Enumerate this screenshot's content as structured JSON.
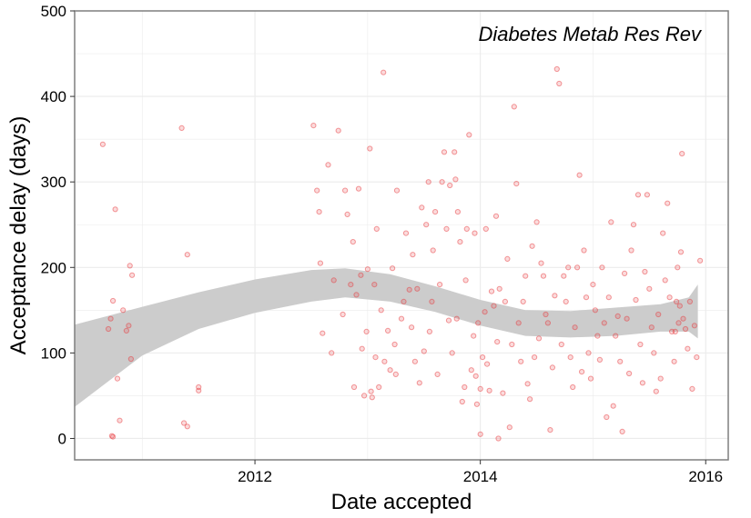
{
  "chart_data": {
    "type": "scatter",
    "title": "Diabetes Metab Res Rev",
    "xlabel": "Date accepted",
    "ylabel": "Acceptance delay (days)",
    "xlim": [
      2010.4,
      2016.2
    ],
    "ylim": [
      -25,
      500
    ],
    "xticks": [
      2012,
      2014,
      2016
    ],
    "yticks": [
      0,
      100,
      200,
      300,
      400,
      500
    ],
    "grid": true,
    "colors": {
      "points": "#e8383b",
      "band": "#cccccc",
      "grid": "#ebebeb",
      "border": "#7f7f7f"
    },
    "smooth_band": [
      {
        "x": 2010.4,
        "lower": 37,
        "upper": 133
      },
      {
        "x": 2011.0,
        "lower": 97,
        "upper": 154
      },
      {
        "x": 2011.5,
        "lower": 128,
        "upper": 171
      },
      {
        "x": 2012.0,
        "lower": 147,
        "upper": 186
      },
      {
        "x": 2012.5,
        "lower": 160,
        "upper": 197
      },
      {
        "x": 2012.8,
        "lower": 165,
        "upper": 199
      },
      {
        "x": 2013.2,
        "lower": 160,
        "upper": 192
      },
      {
        "x": 2013.6,
        "lower": 148,
        "upper": 178
      },
      {
        "x": 2014.0,
        "lower": 132,
        "upper": 162
      },
      {
        "x": 2014.4,
        "lower": 120,
        "upper": 150
      },
      {
        "x": 2014.8,
        "lower": 118,
        "upper": 149
      },
      {
        "x": 2015.2,
        "lower": 120,
        "upper": 153
      },
      {
        "x": 2015.6,
        "lower": 125,
        "upper": 157
      },
      {
        "x": 2015.85,
        "lower": 125,
        "upper": 165
      },
      {
        "x": 2015.93,
        "lower": 117,
        "upper": 180
      }
    ],
    "points": [
      [
        2010.65,
        344
      ],
      [
        2010.7,
        128
      ],
      [
        2010.72,
        140
      ],
      [
        2010.74,
        161
      ],
      [
        2010.76,
        268
      ],
      [
        2010.78,
        70
      ],
      [
        2010.73,
        3
      ],
      [
        2010.74,
        2
      ],
      [
        2010.8,
        21
      ],
      [
        2010.83,
        150
      ],
      [
        2010.86,
        126
      ],
      [
        2010.88,
        132
      ],
      [
        2010.9,
        93
      ],
      [
        2010.89,
        202
      ],
      [
        2010.91,
        191
      ],
      [
        2011.35,
        363
      ],
      [
        2011.37,
        18
      ],
      [
        2011.4,
        14
      ],
      [
        2011.4,
        215
      ],
      [
        2011.5,
        60
      ],
      [
        2011.5,
        56
      ],
      [
        2012.52,
        366
      ],
      [
        2012.55,
        290
      ],
      [
        2012.57,
        265
      ],
      [
        2012.58,
        205
      ],
      [
        2012.6,
        123
      ],
      [
        2012.65,
        320
      ],
      [
        2012.68,
        100
      ],
      [
        2012.7,
        185
      ],
      [
        2012.74,
        360
      ],
      [
        2012.78,
        145
      ],
      [
        2012.8,
        290
      ],
      [
        2012.82,
        262
      ],
      [
        2012.85,
        180
      ],
      [
        2012.87,
        230
      ],
      [
        2012.88,
        60
      ],
      [
        2012.9,
        168
      ],
      [
        2012.92,
        292
      ],
      [
        2012.94,
        191
      ],
      [
        2012.95,
        105
      ],
      [
        2012.97,
        50
      ],
      [
        2012.99,
        125
      ],
      [
        2013.0,
        198
      ],
      [
        2013.02,
        339
      ],
      [
        2013.03,
        55
      ],
      [
        2013.04,
        48
      ],
      [
        2013.06,
        180
      ],
      [
        2013.07,
        95
      ],
      [
        2013.08,
        245
      ],
      [
        2013.1,
        60
      ],
      [
        2013.12,
        150
      ],
      [
        2013.14,
        428
      ],
      [
        2013.15,
        90
      ],
      [
        2013.18,
        126
      ],
      [
        2013.2,
        80
      ],
      [
        2013.22,
        199
      ],
      [
        2013.24,
        110
      ],
      [
        2013.25,
        75
      ],
      [
        2013.26,
        290
      ],
      [
        2013.3,
        140
      ],
      [
        2013.32,
        160
      ],
      [
        2013.34,
        240
      ],
      [
        2013.37,
        174
      ],
      [
        2013.39,
        130
      ],
      [
        2013.4,
        215
      ],
      [
        2013.42,
        90
      ],
      [
        2013.44,
        175
      ],
      [
        2013.46,
        65
      ],
      [
        2013.48,
        270
      ],
      [
        2013.5,
        102
      ],
      [
        2013.52,
        250
      ],
      [
        2013.54,
        300
      ],
      [
        2013.55,
        125
      ],
      [
        2013.57,
        160
      ],
      [
        2013.58,
        220
      ],
      [
        2013.6,
        265
      ],
      [
        2013.62,
        75
      ],
      [
        2013.64,
        180
      ],
      [
        2013.66,
        300
      ],
      [
        2013.68,
        335
      ],
      [
        2013.7,
        245
      ],
      [
        2013.72,
        138
      ],
      [
        2013.73,
        296
      ],
      [
        2013.75,
        100
      ],
      [
        2013.77,
        335
      ],
      [
        2013.78,
        303
      ],
      [
        2013.79,
        140
      ],
      [
        2013.8,
        265
      ],
      [
        2013.82,
        230
      ],
      [
        2013.84,
        43
      ],
      [
        2013.86,
        60
      ],
      [
        2013.87,
        185
      ],
      [
        2013.88,
        245
      ],
      [
        2013.9,
        355
      ],
      [
        2013.92,
        80
      ],
      [
        2013.94,
        120
      ],
      [
        2013.95,
        240
      ],
      [
        2013.96,
        73
      ],
      [
        2013.97,
        40
      ],
      [
        2013.98,
        135
      ],
      [
        2014.0,
        5
      ],
      [
        2014.02,
        95
      ],
      [
        2014.04,
        148
      ],
      [
        2014.05,
        245
      ],
      [
        2014.06,
        87
      ],
      [
        2014.08,
        56
      ],
      [
        2014.1,
        172
      ],
      [
        2014.12,
        155
      ],
      [
        2014.14,
        260
      ],
      [
        2014.15,
        113
      ],
      [
        2014.16,
        0
      ],
      [
        2014.17,
        175
      ],
      [
        2014.2,
        53
      ],
      [
        2014.22,
        160
      ],
      [
        2014.24,
        210
      ],
      [
        2014.26,
        13
      ],
      [
        2014.28,
        110
      ],
      [
        2014.3,
        388
      ],
      [
        2014.32,
        298
      ],
      [
        2014.34,
        135
      ],
      [
        2014.36,
        90
      ],
      [
        2014.38,
        160
      ],
      [
        2014.4,
        190
      ],
      [
        2014.42,
        64
      ],
      [
        2014.44,
        46
      ],
      [
        2014.46,
        225
      ],
      [
        2014.48,
        95
      ],
      [
        2014.5,
        253
      ],
      [
        2014.52,
        117
      ],
      [
        2014.54,
        205
      ],
      [
        2014.56,
        190
      ],
      [
        2014.58,
        145
      ],
      [
        2014.6,
        135
      ],
      [
        2014.62,
        10
      ],
      [
        2014.64,
        83
      ],
      [
        2014.66,
        167
      ],
      [
        2014.68,
        432
      ],
      [
        2014.7,
        415
      ],
      [
        2014.72,
        110
      ],
      [
        2014.74,
        190
      ],
      [
        2014.76,
        160
      ],
      [
        2014.78,
        200
      ],
      [
        2014.8,
        95
      ],
      [
        2014.82,
        60
      ],
      [
        2014.84,
        130
      ],
      [
        2014.86,
        200
      ],
      [
        2014.88,
        308
      ],
      [
        2014.9,
        78
      ],
      [
        2014.92,
        220
      ],
      [
        2014.94,
        165
      ],
      [
        2014.96,
        100
      ],
      [
        2014.98,
        70
      ],
      [
        2015.0,
        180
      ],
      [
        2015.02,
        150
      ],
      [
        2015.04,
        120
      ],
      [
        2015.06,
        92
      ],
      [
        2015.08,
        200
      ],
      [
        2015.1,
        135
      ],
      [
        2015.12,
        25
      ],
      [
        2015.14,
        165
      ],
      [
        2015.16,
        253
      ],
      [
        2015.18,
        38
      ],
      [
        2015.2,
        120
      ],
      [
        2015.22,
        143
      ],
      [
        2015.24,
        90
      ],
      [
        2015.26,
        8
      ],
      [
        2015.28,
        193
      ],
      [
        2015.3,
        140
      ],
      [
        2015.32,
        76
      ],
      [
        2015.34,
        220
      ],
      [
        2015.36,
        250
      ],
      [
        2015.38,
        162
      ],
      [
        2015.4,
        285
      ],
      [
        2015.42,
        110
      ],
      [
        2015.44,
        65
      ],
      [
        2015.46,
        195
      ],
      [
        2015.48,
        285
      ],
      [
        2015.5,
        175
      ],
      [
        2015.52,
        130
      ],
      [
        2015.54,
        100
      ],
      [
        2015.56,
        55
      ],
      [
        2015.58,
        145
      ],
      [
        2015.6,
        70
      ],
      [
        2015.62,
        240
      ],
      [
        2015.64,
        185
      ],
      [
        2015.66,
        275
      ],
      [
        2015.68,
        165
      ],
      [
        2015.7,
        125
      ],
      [
        2015.72,
        90
      ],
      [
        2015.73,
        125
      ],
      [
        2015.74,
        160
      ],
      [
        2015.75,
        200
      ],
      [
        2015.76,
        135
      ],
      [
        2015.77,
        155
      ],
      [
        2015.78,
        218
      ],
      [
        2015.79,
        333
      ],
      [
        2015.8,
        140
      ],
      [
        2015.82,
        128
      ],
      [
        2015.84,
        105
      ],
      [
        2015.86,
        160
      ],
      [
        2015.88,
        58
      ],
      [
        2015.9,
        132
      ],
      [
        2015.92,
        95
      ],
      [
        2015.95,
        208
      ],
      [
        2014.0,
        58
      ]
    ]
  }
}
